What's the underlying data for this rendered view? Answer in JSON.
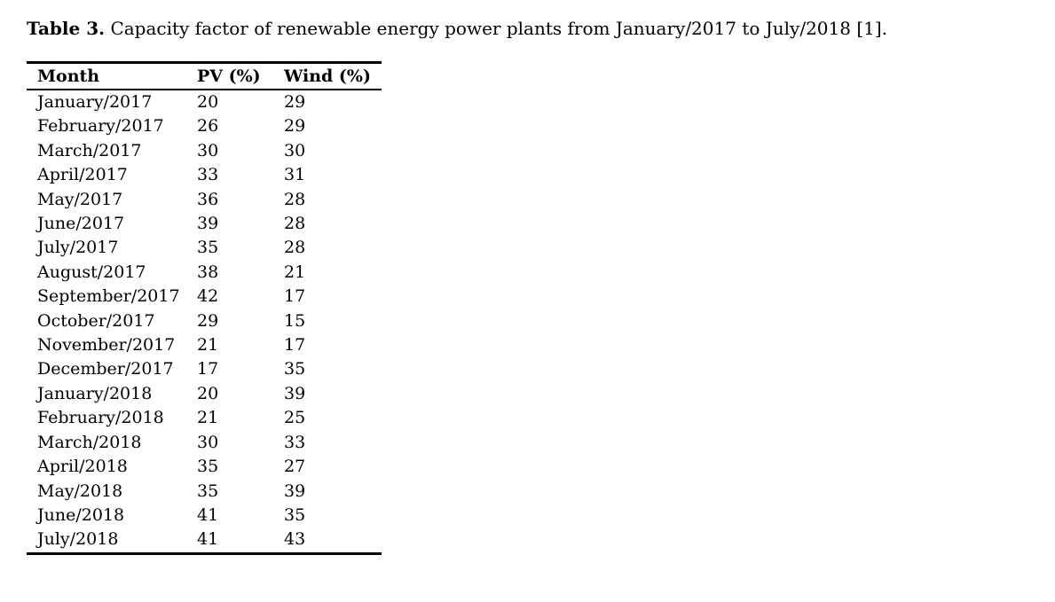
{
  "page": {
    "background_color": "#ffffff",
    "text_color": "#000000"
  },
  "caption": {
    "label": "Table 3.",
    "text": "Capacity factor of renewable energy power plants from January/2017 to July/2018 [1]."
  },
  "table": {
    "columns": [
      "Month",
      "PV (%)",
      "Wind (%)"
    ],
    "rows": [
      [
        "January/2017",
        "20",
        "29"
      ],
      [
        "February/2017",
        "26",
        "29"
      ],
      [
        "March/2017",
        "30",
        "30"
      ],
      [
        "April/2017",
        "33",
        "31"
      ],
      [
        "May/2017",
        "36",
        "28"
      ],
      [
        "June/2017",
        "39",
        "28"
      ],
      [
        "July/2017",
        "35",
        "28"
      ],
      [
        "August/2017",
        "38",
        "21"
      ],
      [
        "September/2017",
        "42",
        "17"
      ],
      [
        "October/2017",
        "29",
        "15"
      ],
      [
        "November/2017",
        "21",
        "17"
      ],
      [
        "December/2017",
        "17",
        "35"
      ],
      [
        "January/2018",
        "20",
        "39"
      ],
      [
        "February/2018",
        "21",
        "25"
      ],
      [
        "March/2018",
        "30",
        "33"
      ],
      [
        "April/2018",
        "35",
        "27"
      ],
      [
        "May/2018",
        "35",
        "39"
      ],
      [
        "June/2018",
        "41",
        "35"
      ],
      [
        "July/2018",
        "41",
        "43"
      ]
    ]
  },
  "chart_data": {
    "type": "table",
    "title": "Table 3. Capacity factor of renewable energy power plants from January/2017 to July/2018 [1].",
    "columns": [
      "Month",
      "PV (%)",
      "Wind (%)"
    ],
    "categories": [
      "January/2017",
      "February/2017",
      "March/2017",
      "April/2017",
      "May/2017",
      "June/2017",
      "July/2017",
      "August/2017",
      "September/2017",
      "October/2017",
      "November/2017",
      "December/2017",
      "January/2018",
      "February/2018",
      "March/2018",
      "April/2018",
      "May/2018",
      "June/2018",
      "July/2018"
    ],
    "series": [
      {
        "name": "PV (%)",
        "values": [
          20,
          26,
          30,
          33,
          36,
          39,
          35,
          38,
          42,
          29,
          21,
          17,
          20,
          21,
          30,
          35,
          35,
          41,
          41
        ]
      },
      {
        "name": "Wind (%)",
        "values": [
          29,
          29,
          30,
          31,
          28,
          28,
          28,
          21,
          17,
          15,
          17,
          35,
          39,
          25,
          33,
          27,
          39,
          35,
          43
        ]
      }
    ]
  }
}
